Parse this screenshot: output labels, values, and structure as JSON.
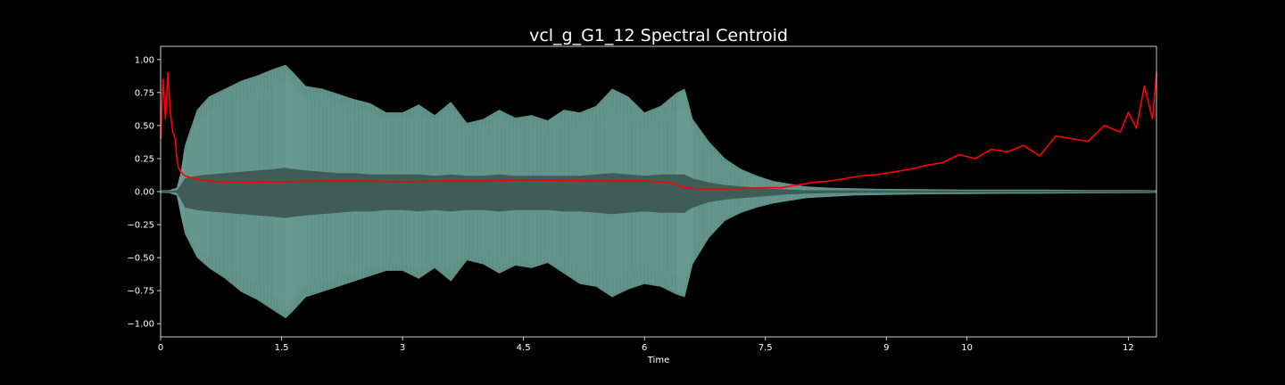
{
  "chart_data": {
    "type": "line",
    "title": "vcl_g_G1_12 Spectral Centroid",
    "xlabel": "Time",
    "ylabel": "",
    "xlim": [
      0,
      12.35
    ],
    "ylim": [
      -1.1,
      1.1
    ],
    "grid": false,
    "x_ticks": [
      {
        "value": 0,
        "label": "0"
      },
      {
        "value": 1.5,
        "label": "1.5"
      },
      {
        "value": 3,
        "label": "3"
      },
      {
        "value": 4.5,
        "label": "4.5"
      },
      {
        "value": 6,
        "label": "6"
      },
      {
        "value": 7.5,
        "label": "7.5"
      },
      {
        "value": 9,
        "label": "9"
      },
      {
        "value": 10,
        "label": "10"
      },
      {
        "value": 12,
        "label": "12"
      }
    ],
    "y_ticks": [
      {
        "value": 1.0,
        "label": "1.00"
      },
      {
        "value": 0.75,
        "label": "0.75"
      },
      {
        "value": 0.5,
        "label": "0.50"
      },
      {
        "value": 0.25,
        "label": "0.25"
      },
      {
        "value": 0.0,
        "label": "0.00"
      },
      {
        "value": -0.25,
        "label": "−0.25"
      },
      {
        "value": -0.5,
        "label": "−0.50"
      },
      {
        "value": -0.75,
        "label": "−0.75"
      },
      {
        "value": -1.0,
        "label": "−1.00"
      }
    ],
    "colors": {
      "background": "#000000",
      "axes": "#ffffff",
      "waveform_outer": "#5e8f85",
      "waveform_inner": "#3f5c56",
      "centroid": "#ff0000"
    },
    "waveform_envelope": {
      "x": [
        0,
        0.1,
        0.2,
        0.25,
        0.3,
        0.45,
        0.6,
        0.8,
        1.0,
        1.2,
        1.4,
        1.55,
        1.65,
        1.8,
        2.0,
        2.2,
        2.4,
        2.6,
        2.8,
        3.0,
        3.2,
        3.4,
        3.6,
        3.8,
        4.0,
        4.2,
        4.4,
        4.6,
        4.8,
        5.0,
        5.2,
        5.4,
        5.6,
        5.8,
        6.0,
        6.2,
        6.4,
        6.5,
        6.6,
        6.8,
        7.0,
        7.2,
        7.4,
        7.6,
        7.8,
        8.0,
        8.3,
        8.6,
        9.0,
        9.5,
        10.0,
        10.5,
        11.0,
        11.5,
        12.0,
        12.35
      ],
      "upper": [
        0.01,
        0.01,
        0.03,
        0.15,
        0.35,
        0.62,
        0.72,
        0.78,
        0.84,
        0.88,
        0.93,
        0.96,
        0.9,
        0.8,
        0.78,
        0.74,
        0.7,
        0.67,
        0.6,
        0.6,
        0.66,
        0.58,
        0.68,
        0.52,
        0.55,
        0.62,
        0.56,
        0.58,
        0.54,
        0.62,
        0.6,
        0.65,
        0.78,
        0.72,
        0.6,
        0.65,
        0.75,
        0.78,
        0.55,
        0.38,
        0.25,
        0.17,
        0.12,
        0.08,
        0.06,
        0.04,
        0.03,
        0.025,
        0.02,
        0.018,
        0.015,
        0.015,
        0.015,
        0.012,
        0.012,
        0.01
      ],
      "lower": [
        -0.01,
        -0.01,
        -0.03,
        -0.18,
        -0.32,
        -0.5,
        -0.58,
        -0.66,
        -0.76,
        -0.82,
        -0.9,
        -0.96,
        -0.9,
        -0.8,
        -0.76,
        -0.72,
        -0.68,
        -0.64,
        -0.6,
        -0.6,
        -0.66,
        -0.58,
        -0.68,
        -0.52,
        -0.55,
        -0.62,
        -0.56,
        -0.58,
        -0.54,
        -0.62,
        -0.7,
        -0.72,
        -0.8,
        -0.74,
        -0.7,
        -0.72,
        -0.78,
        -0.8,
        -0.55,
        -0.35,
        -0.22,
        -0.16,
        -0.12,
        -0.09,
        -0.07,
        -0.05,
        -0.04,
        -0.03,
        -0.025,
        -0.02,
        -0.018,
        -0.016,
        -0.015,
        -0.013,
        -0.012,
        -0.01
      ],
      "inner_upper": [
        0.005,
        0.005,
        0.01,
        0.05,
        0.1,
        0.12,
        0.13,
        0.14,
        0.15,
        0.16,
        0.17,
        0.18,
        0.17,
        0.16,
        0.15,
        0.14,
        0.14,
        0.13,
        0.13,
        0.13,
        0.13,
        0.12,
        0.13,
        0.12,
        0.12,
        0.13,
        0.12,
        0.12,
        0.12,
        0.12,
        0.12,
        0.13,
        0.14,
        0.13,
        0.12,
        0.13,
        0.13,
        0.13,
        0.1,
        0.07,
        0.05,
        0.04,
        0.03,
        0.02,
        0.015,
        0.01,
        0.01,
        0.01,
        0.008,
        0.008,
        0.007,
        0.007,
        0.007,
        0.006,
        0.006,
        0.005
      ],
      "inner_lower": [
        -0.005,
        -0.005,
        -0.01,
        -0.06,
        -0.12,
        -0.14,
        -0.15,
        -0.16,
        -0.17,
        -0.18,
        -0.19,
        -0.2,
        -0.19,
        -0.18,
        -0.17,
        -0.16,
        -0.15,
        -0.15,
        -0.14,
        -0.14,
        -0.15,
        -0.14,
        -0.15,
        -0.14,
        -0.14,
        -0.15,
        -0.14,
        -0.14,
        -0.14,
        -0.15,
        -0.15,
        -0.16,
        -0.17,
        -0.16,
        -0.15,
        -0.16,
        -0.16,
        -0.16,
        -0.12,
        -0.08,
        -0.06,
        -0.05,
        -0.04,
        -0.03,
        -0.02,
        -0.015,
        -0.012,
        -0.01,
        -0.009,
        -0.008,
        -0.007,
        -0.007,
        -0.007,
        -0.006,
        -0.006,
        -0.005
      ]
    },
    "series": [
      {
        "x": [
          0,
          0.03,
          0.06,
          0.09,
          0.12,
          0.15,
          0.18,
          0.2,
          0.22,
          0.25,
          0.3,
          0.4,
          0.5,
          0.6,
          0.8,
          1.0,
          1.5,
          2.0,
          2.5,
          3.0,
          3.5,
          4.0,
          4.5,
          5.0,
          5.5,
          6.0,
          6.3,
          6.5,
          6.7,
          7.0,
          7.3,
          7.5,
          7.7,
          7.9,
          8.1,
          8.3,
          8.5,
          8.7,
          8.9,
          9.1,
          9.3,
          9.5,
          9.7,
          9.9,
          10.1,
          10.3,
          10.5,
          10.7,
          10.9,
          11.1,
          11.3,
          11.5,
          11.7,
          11.9,
          12.0,
          12.1,
          12.2,
          12.3,
          12.35
        ],
        "y": [
          0.4,
          0.85,
          0.55,
          0.9,
          0.6,
          0.45,
          0.4,
          0.25,
          0.18,
          0.15,
          0.12,
          0.1,
          0.09,
          0.08,
          0.07,
          0.07,
          0.075,
          0.08,
          0.08,
          0.075,
          0.08,
          0.08,
          0.09,
          0.085,
          0.08,
          0.08,
          0.07,
          0.03,
          0.02,
          0.02,
          0.025,
          0.03,
          0.03,
          0.05,
          0.07,
          0.08,
          0.1,
          0.12,
          0.13,
          0.15,
          0.17,
          0.2,
          0.22,
          0.28,
          0.25,
          0.32,
          0.3,
          0.35,
          0.27,
          0.42,
          0.4,
          0.38,
          0.5,
          0.45,
          0.6,
          0.48,
          0.8,
          0.55,
          0.9
        ]
      }
    ]
  }
}
